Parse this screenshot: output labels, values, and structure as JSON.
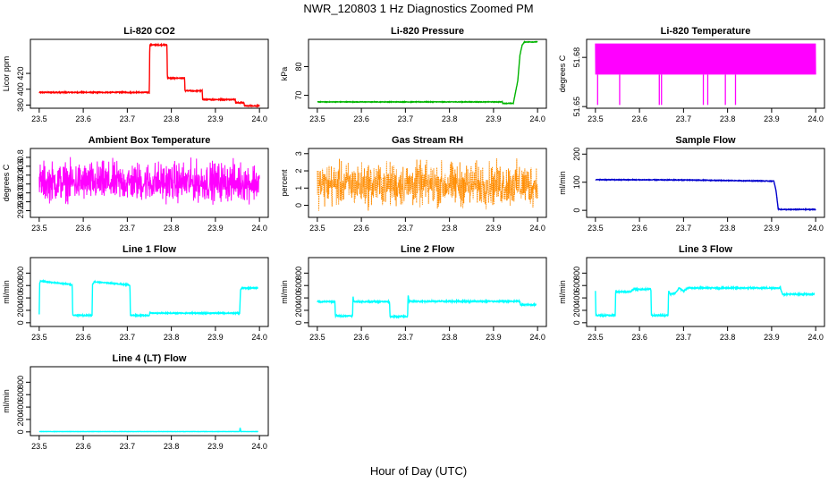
{
  "figure": {
    "title": "NWR_120803  1 Hz Diagnostics Zoomed PM",
    "xlabel": "Hour of Day (UTC)"
  },
  "chart_data": [
    {
      "type": "line",
      "title": "Li-820 CO2",
      "ylabel": "Licor ppm",
      "xlim": [
        23.48,
        24.02
      ],
      "ylim": [
        376,
        463
      ],
      "xticks": [
        "23.5",
        "23.6",
        "23.7",
        "23.8",
        "23.9",
        "24.0"
      ],
      "yticks": [
        {
          "v": 380,
          "label": "380"
        },
        {
          "v": 400,
          "label": "400"
        },
        {
          "v": 420,
          "label": "420"
        }
      ],
      "series": [
        {
          "color": "#ff0000",
          "noise": 0.6,
          "x": [
            23.5,
            23.75,
            23.751,
            23.79,
            23.791,
            23.83,
            23.831,
            23.87,
            23.871,
            23.945,
            23.946,
            23.965,
            23.966,
            24.0
          ],
          "y": [
            396,
            396,
            456,
            456,
            414,
            414,
            398,
            398,
            387,
            387,
            383,
            383,
            379,
            379
          ]
        }
      ]
    },
    {
      "type": "line",
      "title": "Li-820 Pressure",
      "ylabel": "kPa",
      "xlim": [
        23.48,
        24.02
      ],
      "ylim": [
        65.5,
        89.5
      ],
      "xticks": [
        "23.5",
        "23.6",
        "23.7",
        "23.8",
        "23.9",
        "24.0"
      ],
      "yticks": [
        {
          "v": 70,
          "label": "70"
        },
        {
          "v": 80,
          "label": "80"
        }
      ],
      "series": [
        {
          "color": "#00b400",
          "noise": 0.1,
          "x": [
            23.5,
            23.92,
            23.921,
            23.945,
            23.955,
            23.96,
            23.965,
            23.97,
            24.0
          ],
          "y": [
            67.7,
            67.7,
            67.2,
            67.2,
            75,
            84,
            87.5,
            88.6,
            88.6
          ]
        }
      ]
    },
    {
      "type": "line",
      "title": "Li-820 Temperature",
      "ylabel": "degrees C",
      "xlim": [
        23.48,
        24.02
      ],
      "ylim": [
        51.649,
        51.691
      ],
      "xticks": [
        "23.5",
        "23.6",
        "23.7",
        "23.8",
        "23.9",
        "24.0"
      ],
      "yticks": [
        {
          "v": 51.65,
          "label": "51.65"
        },
        {
          "v": 51.68,
          "label": "51.68"
        }
      ],
      "series": [
        {
          "color": "#ff00ff",
          "band": [
            51.6695,
            51.6885
          ],
          "dips": [
            {
              "x": 23.505,
              "y": 51.651
            },
            {
              "x": 23.555,
              "y": 51.651
            },
            {
              "x": 23.645,
              "y": 51.651
            },
            {
              "x": 23.65,
              "y": 51.651
            },
            {
              "x": 23.745,
              "y": 51.651
            },
            {
              "x": 23.755,
              "y": 51.651
            },
            {
              "x": 23.795,
              "y": 51.651
            },
            {
              "x": 23.818,
              "y": 51.651
            }
          ]
        }
      ]
    },
    {
      "type": "line",
      "title": "Ambient Box Temperature",
      "ylabel": "degrees C",
      "xlim": [
        23.48,
        24.02
      ],
      "ylim": [
        29.45,
        31.0
      ],
      "xticks": [
        "23.5",
        "23.6",
        "23.7",
        "23.8",
        "23.9",
        "24.0"
      ],
      "yticks": [
        {
          "v": 29.6,
          "label": "29.6"
        },
        {
          "v": 29.8,
          "label": "29.8"
        },
        {
          "v": 30.0,
          "label": "30.0"
        },
        {
          "v": 30.2,
          "label": "30.2"
        },
        {
          "v": 30.4,
          "label": "30.4"
        },
        {
          "v": 30.6,
          "label": "30.6"
        },
        {
          "v": 30.8,
          "label": "30.8"
        }
      ],
      "series": [
        {
          "color": "#ff00ff",
          "noise_band": [
            29.65,
            30.9
          ],
          "noise_center": 30.22
        }
      ]
    },
    {
      "type": "scatter",
      "title": "Gas Stream RH",
      "ylabel": "percent",
      "xlim": [
        23.48,
        24.02
      ],
      "ylim": [
        -0.7,
        3.3
      ],
      "xticks": [
        "23.5",
        "23.6",
        "23.7",
        "23.8",
        "23.9",
        "24.0"
      ],
      "yticks": [
        {
          "v": 0,
          "label": "0"
        },
        {
          "v": 1,
          "label": "1"
        },
        {
          "v": 2,
          "label": "2"
        },
        {
          "v": 3,
          "label": "3"
        }
      ],
      "series": [
        {
          "color": "#ff8c00",
          "noise_band": [
            -0.6,
            3.0
          ],
          "noise_center": 1.2
        }
      ]
    },
    {
      "type": "line",
      "title": "Sample Flow",
      "ylabel": "ml/min",
      "xlim": [
        23.48,
        24.02
      ],
      "ylim": [
        -25,
        220
      ],
      "xticks": [
        "23.5",
        "23.6",
        "23.7",
        "23.8",
        "23.9",
        "24.0"
      ],
      "yticks": [
        {
          "v": 0,
          "label": "0"
        },
        {
          "v": 100,
          "label": "100"
        },
        {
          "v": 200,
          "label": "200"
        }
      ],
      "series": [
        {
          "color": "#0000cd",
          "noise": 1.2,
          "x": [
            23.5,
            23.7,
            23.8,
            23.905,
            23.91,
            23.915,
            23.92,
            24.0
          ],
          "y": [
            109,
            108,
            106,
            104,
            70,
            5,
            3,
            3
          ]
        }
      ]
    },
    {
      "type": "line",
      "title": "Line 1 Flow",
      "ylabel": "ml/min",
      "xlim": [
        23.48,
        24.02
      ],
      "ylim": [
        -60,
        1050
      ],
      "xticks": [
        "23.5",
        "23.6",
        "23.7",
        "23.8",
        "23.9",
        "24.0"
      ],
      "yticks": [
        {
          "v": 0,
          "label": "0"
        },
        {
          "v": 200,
          "label": "200"
        },
        {
          "v": 400,
          "label": "400"
        },
        {
          "v": 600,
          "label": "600"
        },
        {
          "v": 800,
          "label": "800"
        }
      ],
      "series": [
        {
          "color": "#00ffff",
          "noise": 8,
          "x": [
            23.5,
            23.501,
            23.503,
            23.57,
            23.575,
            23.576,
            23.62,
            23.621,
            23.625,
            23.705,
            23.706,
            23.707,
            23.75,
            23.751,
            23.955,
            23.957,
            23.96,
            23.997
          ],
          "y": [
            140,
            630,
            670,
            620,
            600,
            120,
            120,
            620,
            660,
            610,
            590,
            120,
            120,
            155,
            155,
            530,
            560,
            560
          ]
        }
      ]
    },
    {
      "type": "line",
      "title": "Line 2 Flow",
      "ylabel": "ml/min",
      "xlim": [
        23.48,
        24.02
      ],
      "ylim": [
        -60,
        1050
      ],
      "xticks": [
        "23.5",
        "23.6",
        "23.7",
        "23.8",
        "23.9",
        "24.0"
      ],
      "yticks": [
        {
          "v": 0,
          "label": "0"
        },
        {
          "v": 200,
          "label": "200"
        },
        {
          "v": 400,
          "label": "400"
        },
        {
          "v": 600,
          "label": "600"
        },
        {
          "v": 800,
          "label": "800"
        }
      ],
      "series": [
        {
          "color": "#00ffff",
          "noise": 10,
          "x": [
            23.5,
            23.54,
            23.541,
            23.58,
            23.581,
            23.583,
            23.664,
            23.665,
            23.705,
            23.706,
            23.708,
            23.96,
            23.961,
            23.997
          ],
          "y": [
            340,
            340,
            110,
            110,
            430,
            340,
            340,
            100,
            100,
            460,
            345,
            345,
            290,
            290
          ]
        }
      ]
    },
    {
      "type": "line",
      "title": "Line 3 Flow",
      "ylabel": "ml/min",
      "xlim": [
        23.48,
        24.02
      ],
      "ylim": [
        -60,
        1050
      ],
      "xticks": [
        "23.5",
        "23.6",
        "23.7",
        "23.8",
        "23.9",
        "24.0"
      ],
      "yticks": [
        {
          "v": 0,
          "label": "0"
        },
        {
          "v": 200,
          "label": "200"
        },
        {
          "v": 400,
          "label": "400"
        },
        {
          "v": 600,
          "label": "600"
        },
        {
          "v": 800,
          "label": "800"
        }
      ],
      "series": [
        {
          "color": "#00ffff",
          "noise": 10,
          "x": [
            23.5,
            23.501,
            23.503,
            23.545,
            23.546,
            23.548,
            23.58,
            23.585,
            23.626,
            23.627,
            23.628,
            23.665,
            23.666,
            23.67,
            23.68,
            23.69,
            23.7,
            23.71,
            23.92,
            23.925,
            23.997
          ],
          "y": [
            520,
            140,
            120,
            120,
            520,
            500,
            500,
            540,
            540,
            120,
            120,
            120,
            520,
            460,
            470,
            560,
            510,
            560,
            560,
            460,
            460
          ]
        }
      ]
    },
    {
      "type": "line",
      "title": "Line 4 (LT) Flow",
      "ylabel": "ml/min",
      "xlim": [
        23.48,
        24.02
      ],
      "ylim": [
        -60,
        1050
      ],
      "xticks": [
        "23.5",
        "23.6",
        "23.7",
        "23.8",
        "23.9",
        "24.0"
      ],
      "yticks": [
        {
          "v": 0,
          "label": "0"
        },
        {
          "v": 200,
          "label": "200"
        },
        {
          "v": 400,
          "label": "400"
        },
        {
          "v": 600,
          "label": "600"
        },
        {
          "v": 800,
          "label": "800"
        }
      ],
      "series": [
        {
          "color": "#00ffff",
          "noise": 2,
          "x": [
            23.5,
            23.955,
            23.956,
            23.958,
            23.96,
            23.997
          ],
          "y": [
            5,
            5,
            70,
            5,
            5,
            5
          ]
        }
      ]
    }
  ]
}
